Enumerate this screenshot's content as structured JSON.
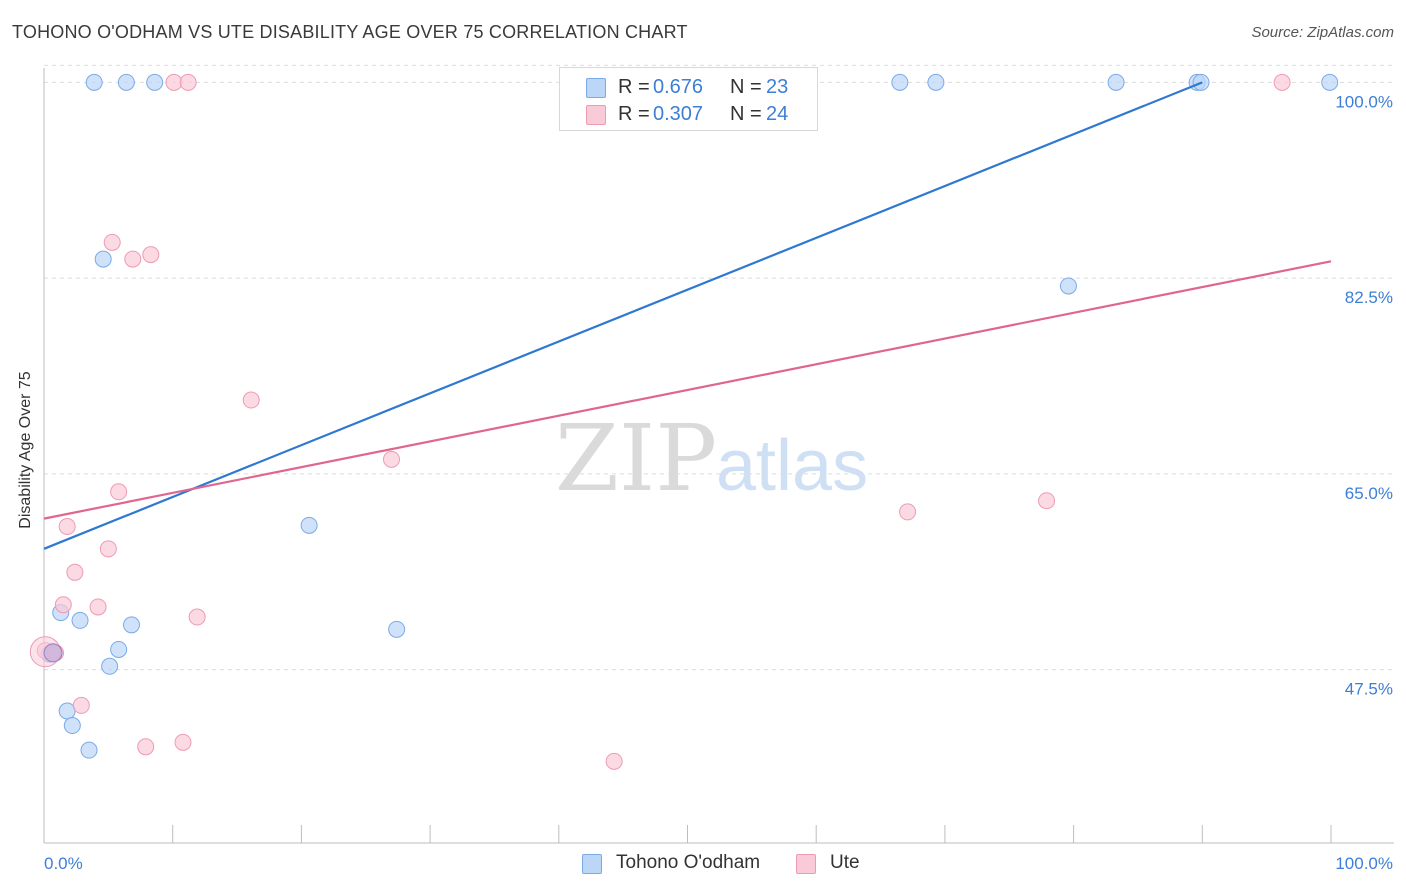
{
  "title": "TOHONO O'ODHAM VS UTE DISABILITY AGE OVER 75 CORRELATION CHART",
  "source": "Source: ZipAtlas.com",
  "watermark": {
    "zip": "ZIP",
    "atlas": "atlas"
  },
  "colors": {
    "blue_fill": "#bcd6f7",
    "blue_stroke": "#7aaae6",
    "blue_line": "#2f78d2",
    "pink_fill": "#f9cbd8",
    "pink_stroke": "#ef9ab3",
    "pink_line": "#e0668f",
    "tick_label": "#3d7fd6",
    "grid": "#dcdcdc",
    "axis": "#bdbdbd"
  },
  "legend": {
    "rows": [
      {
        "r_label": "R =",
        "r_value": "0.676",
        "n_label": "N =",
        "n_value": "23"
      },
      {
        "r_label": "R =",
        "r_value": "0.307",
        "n_label": "N =",
        "n_value": "24"
      }
    ]
  },
  "chart_data": {
    "type": "scatter",
    "title": "TOHONO O'ODHAM VS UTE DISABILITY AGE OVER 75 CORRELATION CHART",
    "xlabel": "",
    "ylabel": "Disability Age Over 75",
    "xlim": [
      0,
      100
    ],
    "ylim": [
      32,
      102
    ],
    "x_tick_labels": [
      "0.0%",
      "100.0%"
    ],
    "y_ticks": [
      47.5,
      65.0,
      82.5,
      100.0
    ],
    "y_tick_labels": [
      "47.5%",
      "65.0%",
      "82.5%",
      "100.0%"
    ],
    "grid": true,
    "legend_position": "top-center",
    "series": [
      {
        "name": "Tohono O'odham",
        "R": 0.676,
        "N": 23,
        "trend": [
          [
            0,
            58.3
          ],
          [
            90,
            100.0
          ]
        ],
        "points": [
          [
            3.9,
            100
          ],
          [
            6.4,
            100
          ],
          [
            8.6,
            100
          ],
          [
            66.5,
            100
          ],
          [
            69.3,
            100
          ],
          [
            83.3,
            100
          ],
          [
            89.6,
            100
          ],
          [
            89.9,
            100
          ],
          [
            99.9,
            100
          ],
          [
            4.6,
            84.2
          ],
          [
            79.6,
            81.8
          ],
          [
            20.6,
            60.4
          ],
          [
            27.4,
            51.1
          ],
          [
            1.3,
            52.6
          ],
          [
            2.8,
            51.9
          ],
          [
            6.8,
            51.5
          ],
          [
            5.8,
            49.3
          ],
          [
            0.7,
            49.0
          ],
          [
            0.4,
            48.9
          ],
          [
            5.1,
            47.8
          ],
          [
            1.8,
            43.8
          ],
          [
            2.2,
            42.5
          ],
          [
            3.5,
            40.3
          ]
        ]
      },
      {
        "name": "Ute",
        "R": 0.307,
        "N": 24,
        "trend": [
          [
            0,
            61.0
          ],
          [
            100,
            84.0
          ]
        ],
        "points": [
          [
            10.1,
            100
          ],
          [
            11.2,
            100
          ],
          [
            56.8,
            100
          ],
          [
            96.2,
            100
          ],
          [
            5.3,
            85.7
          ],
          [
            8.3,
            84.6
          ],
          [
            6.9,
            84.2
          ],
          [
            16.1,
            71.6
          ],
          [
            27.0,
            66.3
          ],
          [
            5.8,
            63.4
          ],
          [
            1.8,
            60.3
          ],
          [
            67.1,
            61.6
          ],
          [
            77.9,
            62.6
          ],
          [
            5.0,
            58.3
          ],
          [
            2.4,
            56.2
          ],
          [
            1.5,
            53.3
          ],
          [
            4.2,
            53.1
          ],
          [
            11.9,
            52.2
          ],
          [
            0.1,
            49.2
          ],
          [
            2.9,
            44.3
          ],
          [
            7.9,
            40.6
          ],
          [
            10.8,
            41.0
          ],
          [
            44.3,
            39.3
          ],
          [
            0.9,
            49.0
          ]
        ]
      }
    ]
  },
  "bottom_legend": {
    "series1": "Tohono O'odham",
    "series2": "Ute"
  }
}
